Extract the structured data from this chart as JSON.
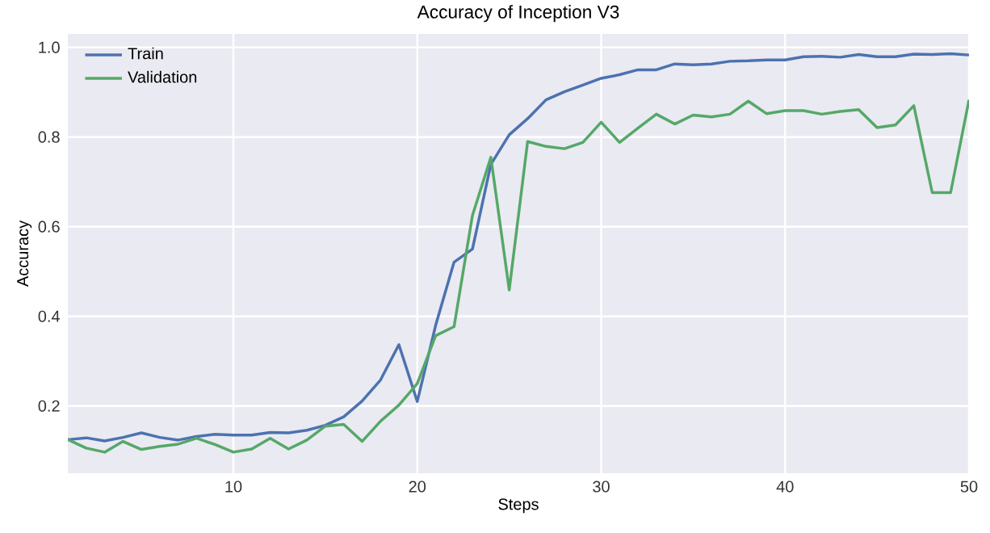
{
  "chart_data": {
    "type": "line",
    "title": "Accuracy of Inception V3",
    "xlabel": "Steps",
    "ylabel": "Accuracy",
    "x": [
      1,
      2,
      3,
      4,
      5,
      6,
      7,
      8,
      9,
      10,
      11,
      12,
      13,
      14,
      15,
      16,
      17,
      18,
      19,
      20,
      21,
      22,
      23,
      24,
      25,
      26,
      27,
      28,
      29,
      30,
      31,
      32,
      33,
      34,
      35,
      36,
      37,
      38,
      39,
      40,
      41,
      42,
      43,
      44,
      45,
      46,
      47,
      48,
      49,
      50
    ],
    "series": [
      {
        "name": "Train",
        "color": "#4c72b0",
        "values": [
          0.125,
          0.129,
          0.122,
          0.13,
          0.14,
          0.13,
          0.124,
          0.132,
          0.137,
          0.135,
          0.135,
          0.141,
          0.14,
          0.146,
          0.157,
          0.176,
          0.211,
          0.258,
          0.337,
          0.21,
          0.38,
          0.521,
          0.55,
          0.739,
          0.805,
          0.841,
          0.883,
          0.901,
          0.916,
          0.931,
          0.939,
          0.95,
          0.95,
          0.963,
          0.961,
          0.963,
          0.969,
          0.97,
          0.972,
          0.972,
          0.979,
          0.98,
          0.978,
          0.984,
          0.979,
          0.979,
          0.985,
          0.984,
          0.986,
          0.983
        ]
      },
      {
        "name": "Validation",
        "color": "#55a868",
        "values": [
          0.125,
          0.106,
          0.097,
          0.121,
          0.103,
          0.11,
          0.115,
          0.128,
          0.114,
          0.097,
          0.104,
          0.128,
          0.104,
          0.124,
          0.155,
          0.159,
          0.121,
          0.166,
          0.202,
          0.25,
          0.357,
          0.377,
          0.625,
          0.755,
          0.459,
          0.79,
          0.779,
          0.774,
          0.788,
          0.833,
          0.788,
          0.82,
          0.851,
          0.829,
          0.849,
          0.845,
          0.851,
          0.88,
          0.852,
          0.859,
          0.859,
          0.851,
          0.857,
          0.861,
          0.821,
          0.827,
          0.87,
          0.676,
          0.676,
          0.883
        ]
      }
    ],
    "xlim": [
      1,
      50
    ],
    "ylim": [
      0.05,
      1.03
    ],
    "xticks": [
      10,
      20,
      30,
      40,
      50
    ],
    "yticks": [
      0.2,
      0.4,
      0.6,
      0.8,
      {
        "value": 1.0,
        "label": "1.0"
      }
    ],
    "grid": true,
    "legend": "top left",
    "marker": "none",
    "line_style": "solid"
  }
}
